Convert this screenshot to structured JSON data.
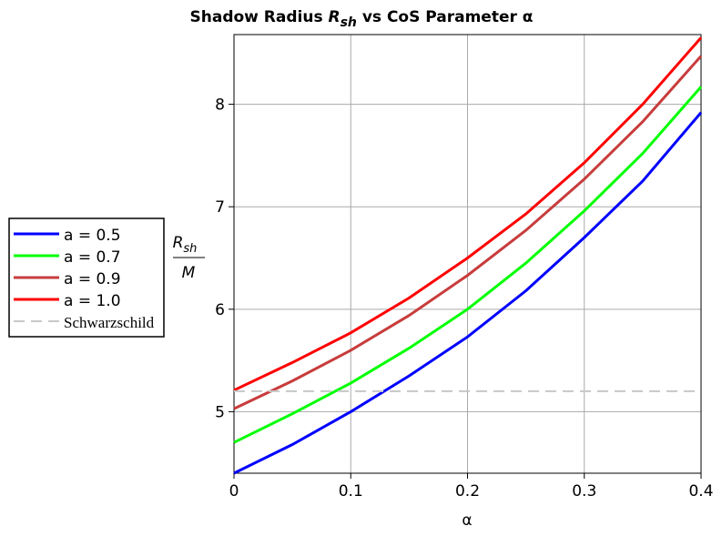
{
  "chart_data": {
    "type": "line",
    "title": {
      "before": "Shadow Radius ",
      "symbol": "R",
      "subscript": "sh",
      "after": " vs CoS Parameter α"
    },
    "xlabel": "α",
    "ylabel": {
      "numerator": "R",
      "subscript": "sh",
      "denominator": "M"
    },
    "x": [
      0,
      0.05,
      0.1,
      0.15,
      0.2,
      0.25,
      0.3,
      0.35,
      0.4
    ],
    "series": [
      {
        "name": "a = 0.5",
        "color": "#0000ff",
        "values": [
          4.4,
          4.68,
          5.0,
          5.35,
          5.73,
          6.18,
          6.7,
          7.25,
          7.92
        ]
      },
      {
        "name": "a = 0.7",
        "color": "#00ff00",
        "values": [
          4.7,
          4.98,
          5.28,
          5.62,
          6.0,
          6.45,
          6.96,
          7.52,
          8.17
        ]
      },
      {
        "name": "a = 0.9",
        "color": "#c83c3c",
        "values": [
          5.03,
          5.3,
          5.6,
          5.94,
          6.33,
          6.77,
          7.27,
          7.83,
          8.47
        ]
      },
      {
        "name": "a = 1.0",
        "color": "#ff0000",
        "values": [
          5.21,
          5.48,
          5.77,
          6.11,
          6.5,
          6.93,
          7.43,
          8.0,
          8.65
        ]
      },
      {
        "name": "Schwarzschild",
        "color": "#c8c8c8",
        "dashed": true,
        "values": [
          5.2,
          5.2,
          5.2,
          5.2,
          5.2,
          5.2,
          5.2,
          5.2,
          5.2
        ]
      }
    ],
    "xlim": [
      0,
      0.4
    ],
    "xticks": [
      0,
      0.1,
      0.2,
      0.3,
      0.4
    ],
    "ylim": [
      4.4,
      8.68
    ],
    "yticks": [
      5,
      6,
      7,
      8
    ],
    "grid": true,
    "legend": "left"
  }
}
